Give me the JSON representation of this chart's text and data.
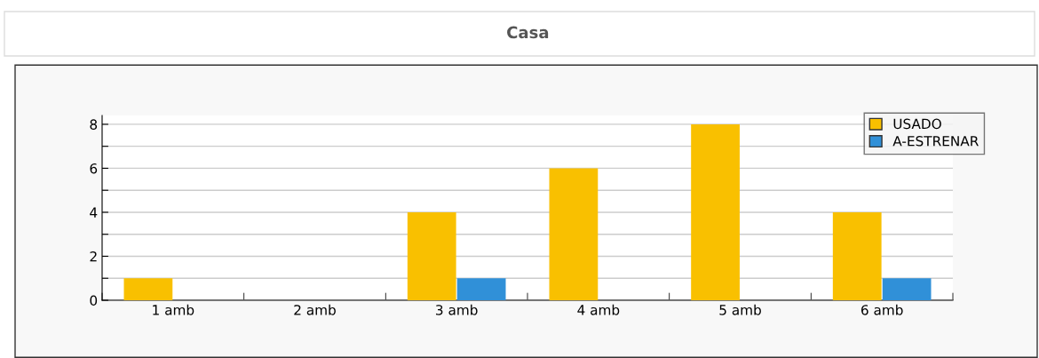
{
  "chart_data": {
    "type": "bar",
    "title": "Casa",
    "categories": [
      "1 amb",
      "2 amb",
      "3 amb",
      "4 amb",
      "5 amb",
      "6 amb"
    ],
    "series": [
      {
        "name": "USADO",
        "color": "#f9c000",
        "values": [
          1,
          0,
          4,
          6,
          8,
          4
        ]
      },
      {
        "name": "A-ESTRENAR",
        "color": "#3090d8",
        "values": [
          0,
          0,
          1,
          0,
          0,
          1
        ]
      }
    ],
    "ylim": [
      0,
      8.4
    ],
    "yticks": [
      0,
      {
        "value": 1,
        "label": null
      },
      2,
      {
        "value": 3,
        "label": null
      },
      4,
      {
        "value": 5,
        "label": null
      },
      6,
      {
        "value": 7,
        "label": null
      },
      8
    ],
    "grid": "y",
    "legend": "top right"
  }
}
